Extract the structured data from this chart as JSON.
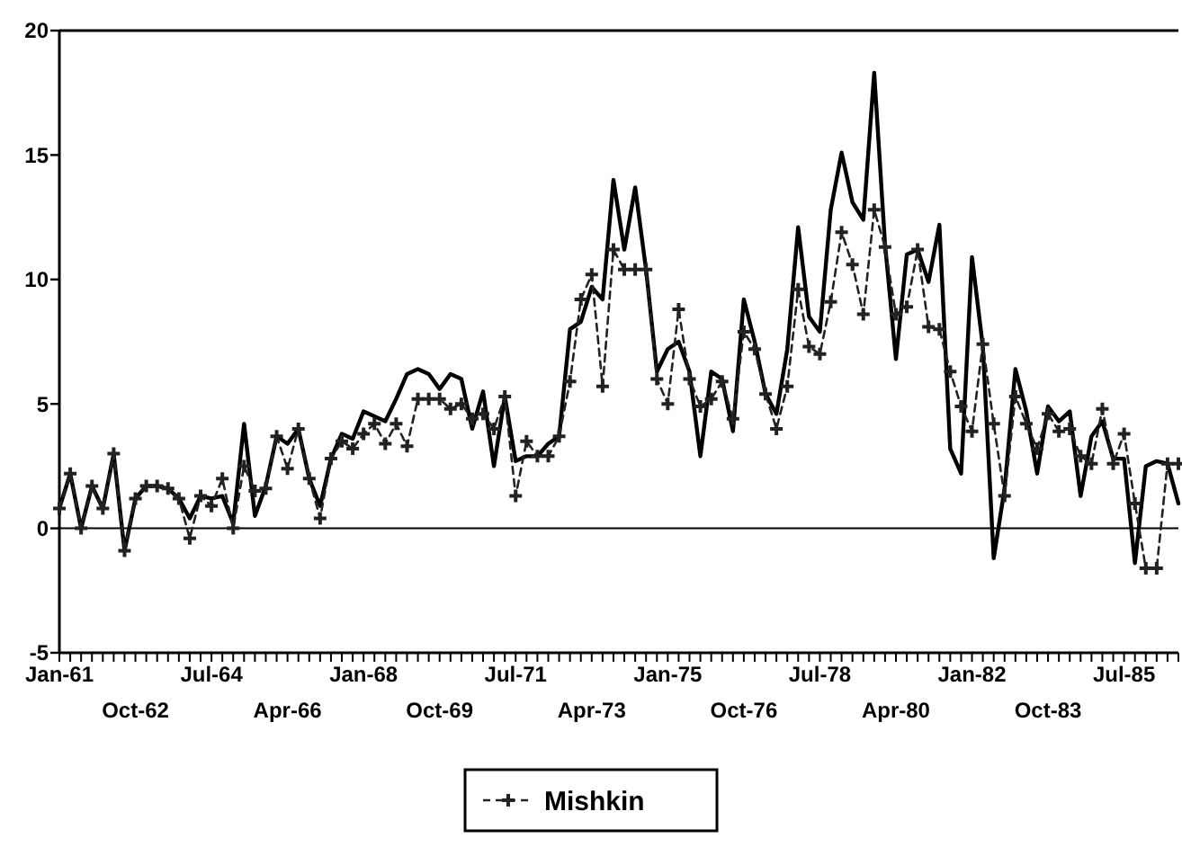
{
  "chart_data": {
    "type": "line",
    "categories": [
      "Jan-61",
      null,
      null,
      null,
      null,
      null,
      null,
      "Oct-62",
      null,
      null,
      null,
      null,
      null,
      null,
      "Jul-64",
      null,
      null,
      null,
      null,
      null,
      null,
      "Apr-66",
      null,
      null,
      null,
      null,
      null,
      null,
      "Jan-68",
      null,
      null,
      null,
      null,
      null,
      null,
      "Oct-69",
      null,
      null,
      null,
      null,
      null,
      null,
      "Jul-71",
      null,
      null,
      null,
      null,
      null,
      null,
      "Apr-73",
      null,
      null,
      null,
      null,
      null,
      null,
      "Jan-75",
      null,
      null,
      null,
      null,
      null,
      null,
      "Oct-76",
      null,
      null,
      null,
      null,
      null,
      null,
      "Jul-78",
      null,
      null,
      null,
      null,
      null,
      null,
      "Apr-80",
      null,
      null,
      null,
      null,
      null,
      null,
      "Jan-82",
      null,
      null,
      null,
      null,
      null,
      null,
      "Oct-83",
      null,
      null,
      null,
      null,
      null,
      null,
      "Jul-85",
      null,
      null,
      null,
      null,
      null
    ],
    "series": [
      {
        "color": "#000000",
        "marker": "none",
        "line_style": "solid",
        "values": [
          0.8,
          2.2,
          0.0,
          1.7,
          0.8,
          3.0,
          -0.9,
          1.2,
          1.7,
          1.7,
          1.6,
          1.2,
          0.4,
          1.3,
          1.2,
          1.3,
          0.2,
          4.2,
          0.5,
          1.7,
          3.7,
          3.4,
          4.0,
          2.0,
          0.9,
          2.8,
          3.8,
          3.6,
          4.7,
          4.5,
          4.3,
          5.2,
          6.2,
          6.4,
          6.2,
          5.6,
          6.2,
          6.0,
          4.0,
          5.5,
          2.5,
          5.3,
          2.7,
          2.9,
          2.9,
          3.4,
          3.7,
          8.0,
          8.3,
          9.7,
          9.2,
          14.0,
          11.2,
          13.7,
          10.4,
          6.3,
          7.2,
          7.5,
          6.3,
          2.9,
          6.3,
          6.0,
          3.9,
          9.2,
          7.5,
          5.4,
          4.6,
          7.2,
          12.1,
          8.5,
          7.9,
          12.8,
          15.1,
          13.1,
          12.4,
          18.3,
          11.4,
          6.8,
          11.0,
          11.2,
          9.9,
          12.2,
          3.2,
          2.2,
          10.9,
          7.3,
          -1.2,
          1.6,
          6.4,
          4.7,
          2.2,
          4.9,
          4.3,
          4.7,
          1.3,
          3.7,
          4.3,
          2.8,
          2.8,
          -1.4,
          2.5,
          2.7,
          2.6,
          1.0
        ]
      },
      {
        "name": "Mishkin",
        "color": "#222222",
        "marker": "cross",
        "line_style": "dashed",
        "values": [
          0.8,
          2.2,
          0.0,
          1.7,
          0.8,
          3.0,
          -0.9,
          1.2,
          1.7,
          1.7,
          1.6,
          1.2,
          -0.4,
          1.3,
          0.9,
          2.0,
          0.0,
          2.5,
          1.5,
          1.6,
          3.7,
          2.4,
          4.0,
          2.0,
          0.4,
          2.8,
          3.5,
          3.2,
          3.8,
          4.2,
          3.4,
          4.2,
          3.3,
          5.2,
          5.2,
          5.2,
          4.8,
          5.0,
          4.4,
          4.6,
          4.0,
          5.3,
          1.3,
          3.5,
          2.9,
          2.9,
          3.7,
          5.9,
          9.2,
          10.2,
          5.7,
          11.2,
          10.4,
          10.4,
          10.4,
          6.0,
          5.0,
          8.8,
          6.0,
          4.9,
          5.2,
          5.9,
          4.4,
          7.9,
          7.2,
          5.4,
          4.0,
          5.7,
          9.6,
          7.3,
          7.0,
          9.1,
          11.9,
          10.6,
          8.6,
          12.8,
          11.3,
          8.6,
          8.9,
          11.2,
          8.1,
          8.0,
          6.3,
          4.9,
          3.9,
          7.4,
          4.2,
          1.3,
          5.3,
          4.2,
          3.2,
          4.6,
          3.9,
          4.0,
          2.9,
          2.6,
          4.8,
          2.6,
          3.8,
          1.0,
          -1.6,
          -1.6,
          2.6,
          2.6
        ]
      }
    ],
    "ylim": [
      -5,
      20
    ],
    "yticks": [
      -5,
      0,
      5,
      10,
      15,
      20
    ],
    "ref_lines": [
      {
        "axis": "y",
        "value": 0
      }
    ],
    "grid": false,
    "legend": "bottom"
  }
}
